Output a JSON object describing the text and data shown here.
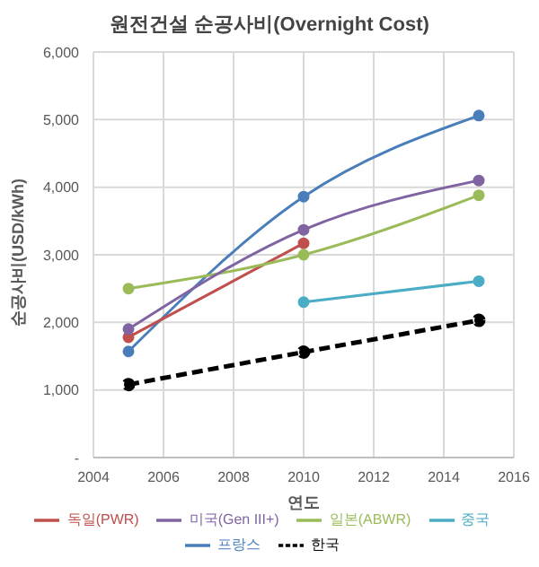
{
  "chart_data": {
    "type": "line",
    "title": "원전건설 순공사비(Overnight Cost)",
    "xlabel": "연도",
    "ylabel": "순공사비(USD/kWh)",
    "x": [
      2005,
      2010,
      2015
    ],
    "series": [
      {
        "name": "프랑스",
        "color": "#4a7ebb",
        "values": [
          1570,
          3860,
          5060
        ]
      },
      {
        "name": "독일(PWR)",
        "color": "#c0504d",
        "values": [
          1780,
          3170,
          null
        ]
      },
      {
        "name": "일본(ABWR)",
        "color": "#9bbb59",
        "values": [
          2500,
          3000,
          3880
        ]
      },
      {
        "name": "미국(Gen III+)",
        "color": "#8064a2",
        "values": [
          1900,
          3370,
          4100
        ]
      },
      {
        "name": "중국",
        "color": "#4bacc6",
        "values": [
          null,
          2300,
          2610
        ]
      },
      {
        "name": "한국",
        "color": "#000000",
        "values": [
          1080,
          1560,
          2030
        ],
        "line_style": "dashed"
      }
    ],
    "xlim": [
      2004,
      2016
    ],
    "xticks": [
      2004,
      2006,
      2008,
      2010,
      2012,
      2014,
      2016
    ],
    "ylim": [
      0,
      6000
    ],
    "yticks": [
      {
        "value": 0,
        "label": "-"
      },
      {
        "value": 1000,
        "label": "1,000"
      },
      {
        "value": 2000,
        "label": "2,000"
      },
      {
        "value": 3000,
        "label": "3,000"
      },
      {
        "value": 4000,
        "label": "4,000"
      },
      {
        "value": 5000,
        "label": "5,000"
      },
      {
        "value": 6000,
        "label": "6,000"
      }
    ],
    "grid": true,
    "legend": "bottom",
    "marker": "circle",
    "line_style": "solid"
  }
}
